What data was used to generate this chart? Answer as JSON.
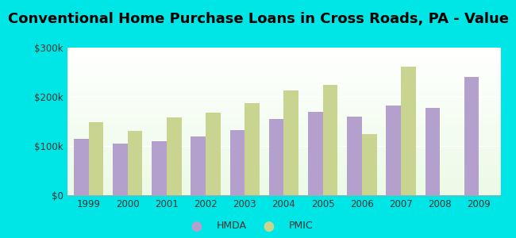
{
  "title": "Conventional Home Purchase Loans in Cross Roads, PA - Value",
  "years": [
    1999,
    2000,
    2001,
    2002,
    2003,
    2004,
    2005,
    2006,
    2007,
    2008,
    2009
  ],
  "hmda": [
    115000,
    105000,
    110000,
    120000,
    132000,
    155000,
    170000,
    160000,
    183000,
    178000,
    240000
  ],
  "pmic": [
    148000,
    130000,
    158000,
    168000,
    187000,
    213000,
    225000,
    125000,
    262000,
    null,
    null
  ],
  "hmda_color": "#b3a0cc",
  "pmic_color": "#c8d490",
  "outer_bg": "#00e5e5",
  "ylim": [
    0,
    300000
  ],
  "yticks": [
    0,
    100000,
    200000,
    300000
  ],
  "ytick_labels": [
    "$0",
    "$100k",
    "$200k",
    "$300k"
  ],
  "bar_width": 0.38,
  "title_fontsize": 13,
  "legend_labels": [
    "HMDA",
    "PMIC"
  ]
}
